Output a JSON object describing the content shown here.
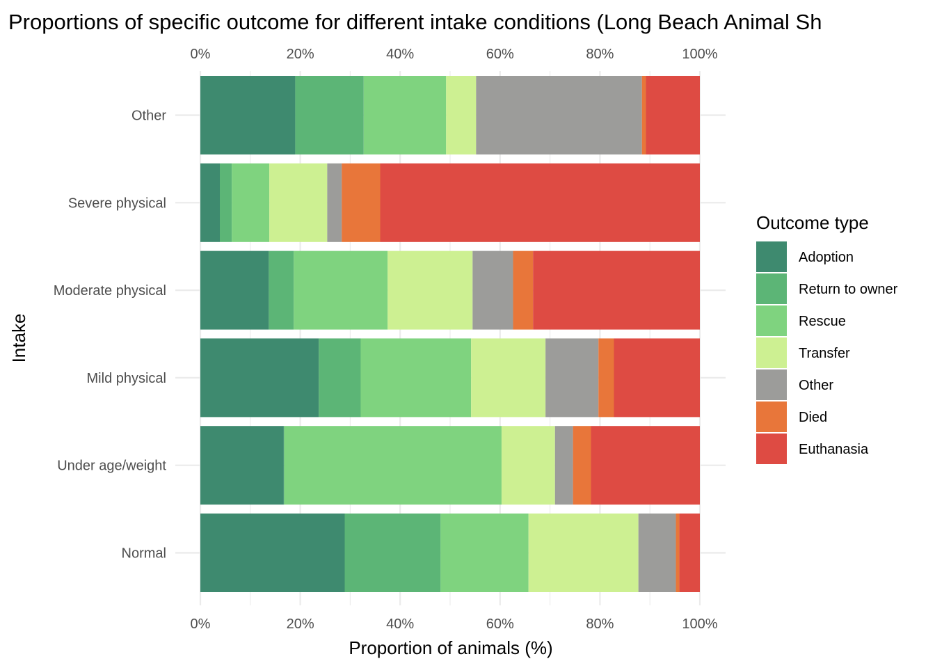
{
  "chart_data": {
    "type": "bar",
    "orientation": "horizontal",
    "stacked": true,
    "title": "Proportions of specific outcome for different intake conditions (Long Beach Animal Sh",
    "xlabel": "Proportion of animals (%)",
    "ylabel": "Intake",
    "xlim": [
      0,
      100
    ],
    "x_ticks": [
      "0%",
      "20%",
      "40%",
      "60%",
      "80%",
      "100%"
    ],
    "x_tick_values": [
      0,
      20,
      40,
      60,
      80,
      100
    ],
    "categories": [
      "Other",
      "Severe physical",
      "Moderate physical",
      "Mild physical",
      "Under age/weight",
      "Normal"
    ],
    "legend": {
      "title": "Outcome type",
      "position": "right"
    },
    "grid": true,
    "series": [
      {
        "name": "Adoption",
        "color": "#3e8a6f",
        "values": [
          19.0,
          3.9,
          13.7,
          23.7,
          16.7,
          28.9
        ]
      },
      {
        "name": "Return to owner",
        "color": "#5cb576",
        "values": [
          13.7,
          2.4,
          5.0,
          8.4,
          0.1,
          19.2
        ]
      },
      {
        "name": "Rescue",
        "color": "#7fd37f",
        "values": [
          16.5,
          7.5,
          18.8,
          22.1,
          43.5,
          17.6
        ]
      },
      {
        "name": "Transfer",
        "color": "#cdf092",
        "values": [
          6.0,
          11.6,
          17.0,
          14.9,
          10.7,
          22.0
        ]
      },
      {
        "name": "Other",
        "color": "#9c9c9a",
        "values": [
          33.2,
          2.9,
          8.1,
          10.6,
          3.6,
          7.5
        ]
      },
      {
        "name": "Died",
        "color": "#e8763a",
        "values": [
          0.8,
          7.7,
          4.0,
          3.1,
          3.6,
          0.7
        ]
      },
      {
        "name": "Euthanasia",
        "color": "#de4b43",
        "values": [
          10.8,
          64.0,
          33.4,
          17.2,
          21.8,
          4.1
        ]
      }
    ]
  }
}
